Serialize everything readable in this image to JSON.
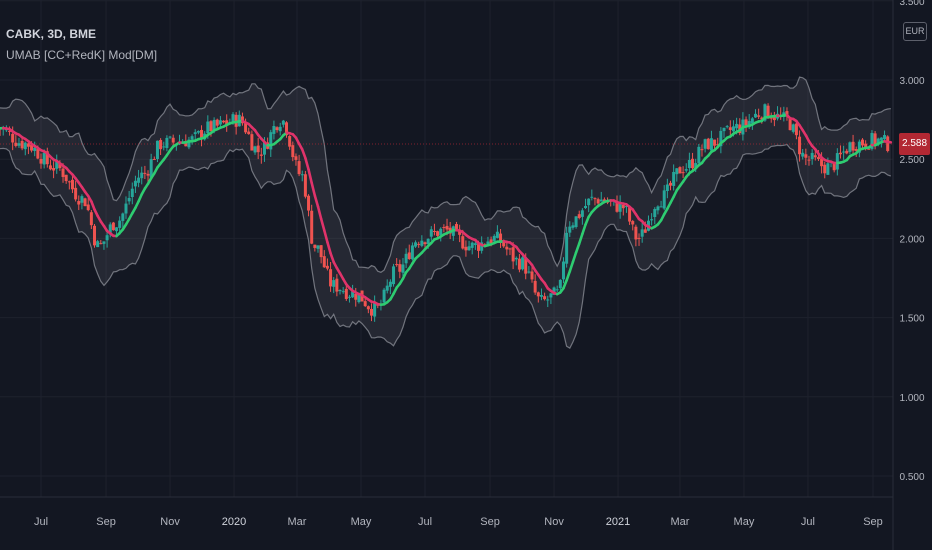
{
  "symbol_title": "CABK, 3D, BME",
  "indicator_title": "UMAB [CC+RedK] Mod[DM]",
  "currency": "EUR",
  "last_price": "2.588",
  "colors": {
    "background": "#131722",
    "up_candle": "#26a69a",
    "down_candle": "#ef5350",
    "ma_up": "#2ecc71",
    "ma_down": "#e0336a",
    "band": "#787b86",
    "price_tag": "#b22833"
  },
  "chart_data": {
    "type": "candlestick",
    "title": "CABK, 3D, BME",
    "price_axis_labels": [
      "3.500",
      "3.000",
      "2.500",
      "2.000",
      "1.500",
      "1.000",
      "0.500"
    ],
    "time_axis_labels": [
      "Jul",
      "Sep",
      "Nov",
      "2020",
      "Mar",
      "May",
      "Jul",
      "Sep",
      "Nov",
      "2021",
      "Mar",
      "May",
      "Jul",
      "Sep"
    ],
    "ylim": [
      0.35,
      3.5
    ],
    "grid": true,
    "last_price": 2.588,
    "series": [
      {
        "name": "UMAB [CC+RedK] Mod[DM]",
        "note": "moving average with upper/lower bands"
      }
    ],
    "close_keypoints": [
      [
        "2019-05-20",
        2.7
      ],
      [
        "2019-06-15",
        2.6
      ],
      [
        "2019-07-15",
        2.45
      ],
      [
        "2019-08-10",
        2.25
      ],
      [
        "2019-08-25",
        1.95
      ],
      [
        "2019-09-10",
        2.1
      ],
      [
        "2019-10-05",
        2.4
      ],
      [
        "2019-10-25",
        2.6
      ],
      [
        "2019-11-20",
        2.62
      ],
      [
        "2019-12-10",
        2.7
      ],
      [
        "2020-01-05",
        2.75
      ],
      [
        "2020-01-25",
        2.55
      ],
      [
        "2020-02-15",
        2.75
      ],
      [
        "2020-03-05",
        2.4
      ],
      [
        "2020-03-18",
        1.95
      ],
      [
        "2020-04-05",
        1.7
      ],
      [
        "2020-04-25",
        1.65
      ],
      [
        "2020-05-15",
        1.55
      ],
      [
        "2020-06-05",
        1.8
      ],
      [
        "2020-06-25",
        2.0
      ],
      [
        "2020-07-20",
        2.05
      ],
      [
        "2020-08-15",
        1.95
      ],
      [
        "2020-09-05",
        2.0
      ],
      [
        "2020-09-30",
        1.85
      ],
      [
        "2020-10-20",
        1.6
      ],
      [
        "2020-11-05",
        1.65
      ],
      [
        "2020-11-15",
        2.1
      ],
      [
        "2020-12-10",
        2.25
      ],
      [
        "2021-01-05",
        2.2
      ],
      [
        "2021-01-20",
        2.0
      ],
      [
        "2021-02-10",
        2.25
      ],
      [
        "2021-03-05",
        2.45
      ],
      [
        "2021-03-30",
        2.6
      ],
      [
        "2021-04-25",
        2.7
      ],
      [
        "2021-05-20",
        2.8
      ],
      [
        "2021-06-10",
        2.75
      ],
      [
        "2021-06-30",
        2.5
      ],
      [
        "2021-07-20",
        2.45
      ],
      [
        "2021-08-15",
        2.6
      ],
      [
        "2021-09-05",
        2.62
      ],
      [
        "2021-09-20",
        2.588
      ]
    ]
  }
}
